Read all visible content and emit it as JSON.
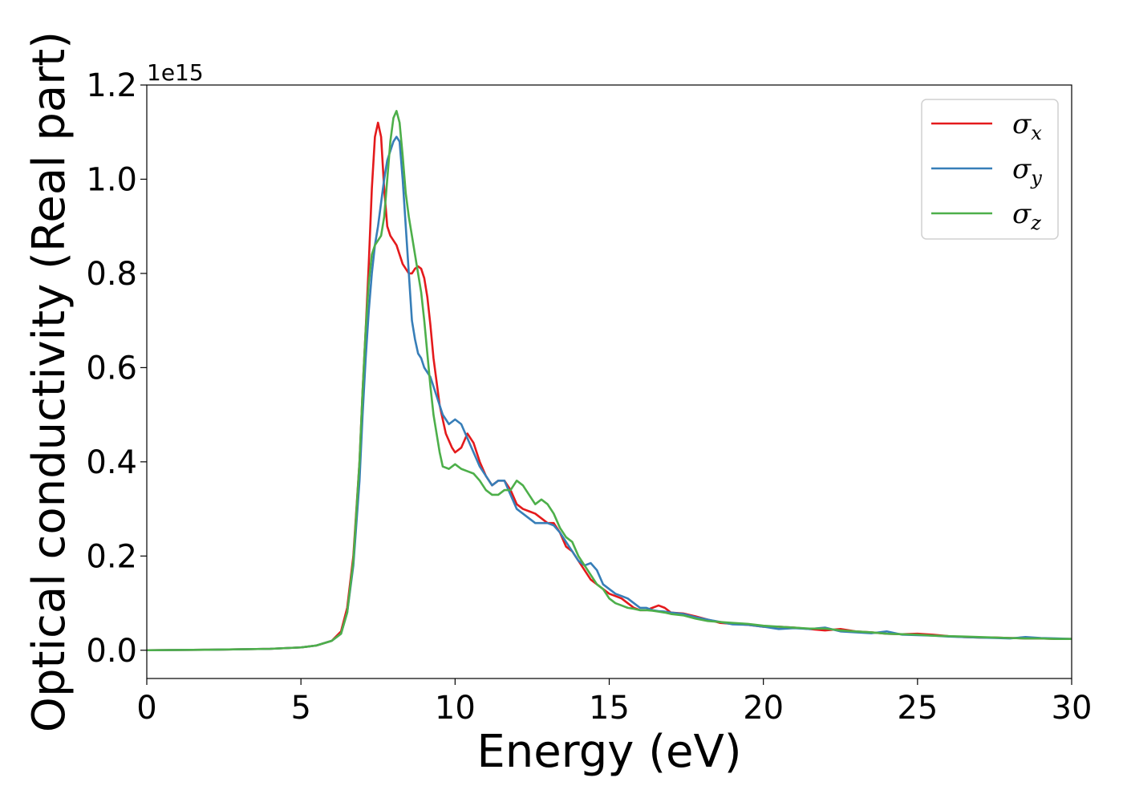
{
  "chart_data": {
    "type": "line",
    "title": "",
    "xlabel": "Energy (eV)",
    "ylabel": "Optical conductivity (Real part)",
    "y_offset_text": "1e15",
    "xlim": [
      0,
      30
    ],
    "ylim": [
      -0.06,
      1.2
    ],
    "xticks": [
      0,
      5,
      10,
      15,
      20,
      25,
      30
    ],
    "xtick_labels": [
      "0",
      "5",
      "10",
      "15",
      "20",
      "25",
      "30"
    ],
    "yticks": [
      0.0,
      0.2,
      0.4,
      0.6,
      0.8,
      1.0,
      1.2
    ],
    "ytick_labels": [
      "0.0",
      "0.2",
      "0.4",
      "0.6",
      "0.8",
      "1.0",
      "1.2"
    ],
    "grid": false,
    "legend_position": "top-right",
    "series": [
      {
        "name": "σx",
        "symbol": "σ",
        "subscript": "x",
        "color": "#e41a1c",
        "x": [
          0,
          2,
          4,
          5,
          5.5,
          6,
          6.3,
          6.5,
          6.7,
          6.9,
          7.0,
          7.1,
          7.2,
          7.3,
          7.4,
          7.5,
          7.6,
          7.7,
          7.8,
          7.9,
          8.0,
          8.1,
          8.2,
          8.3,
          8.5,
          8.6,
          8.7,
          8.8,
          8.9,
          9.0,
          9.1,
          9.2,
          9.3,
          9.5,
          9.7,
          9.9,
          10.0,
          10.2,
          10.4,
          10.6,
          10.8,
          11.0,
          11.2,
          11.4,
          11.6,
          11.8,
          12.0,
          12.2,
          12.4,
          12.6,
          12.8,
          13.0,
          13.2,
          13.4,
          13.6,
          13.8,
          14.0,
          14.2,
          14.4,
          14.6,
          14.8,
          15.0,
          15.2,
          15.4,
          15.6,
          15.8,
          16.0,
          16.2,
          16.4,
          16.6,
          16.8,
          17.0,
          17.4,
          17.8,
          18.2,
          18.6,
          19.0,
          19.5,
          20.0,
          20.5,
          21.0,
          21.5,
          22.0,
          22.5,
          23.0,
          23.5,
          24.0,
          24.5,
          25.0,
          25.5,
          26.0,
          26.5,
          27.0,
          27.5,
          28.0,
          28.5,
          29.0,
          29.5,
          30.0
        ],
        "y": [
          0.0,
          0.001,
          0.003,
          0.006,
          0.01,
          0.02,
          0.04,
          0.09,
          0.2,
          0.4,
          0.55,
          0.68,
          0.82,
          0.98,
          1.09,
          1.12,
          1.09,
          0.98,
          0.9,
          0.88,
          0.87,
          0.86,
          0.84,
          0.82,
          0.8,
          0.8,
          0.81,
          0.815,
          0.81,
          0.79,
          0.75,
          0.69,
          0.62,
          0.52,
          0.46,
          0.43,
          0.42,
          0.43,
          0.46,
          0.44,
          0.4,
          0.37,
          0.35,
          0.36,
          0.36,
          0.34,
          0.31,
          0.3,
          0.295,
          0.29,
          0.28,
          0.27,
          0.27,
          0.25,
          0.22,
          0.21,
          0.19,
          0.17,
          0.15,
          0.14,
          0.13,
          0.12,
          0.115,
          0.11,
          0.1,
          0.09,
          0.085,
          0.085,
          0.09,
          0.095,
          0.09,
          0.08,
          0.078,
          0.072,
          0.065,
          0.058,
          0.056,
          0.054,
          0.05,
          0.05,
          0.048,
          0.045,
          0.042,
          0.045,
          0.04,
          0.038,
          0.035,
          0.034,
          0.035,
          0.033,
          0.03,
          0.028,
          0.027,
          0.027,
          0.026,
          0.025,
          0.025,
          0.024,
          0.024
        ]
      },
      {
        "name": "σy",
        "symbol": "σ",
        "subscript": "y",
        "color": "#377eb8",
        "x": [
          0,
          2,
          4,
          5,
          5.5,
          6,
          6.3,
          6.5,
          6.7,
          6.9,
          7.0,
          7.1,
          7.2,
          7.3,
          7.4,
          7.5,
          7.6,
          7.7,
          7.8,
          7.9,
          8.0,
          8.1,
          8.2,
          8.3,
          8.4,
          8.5,
          8.6,
          8.7,
          8.8,
          8.9,
          9.0,
          9.2,
          9.4,
          9.6,
          9.8,
          10.0,
          10.2,
          10.4,
          10.6,
          10.8,
          11.0,
          11.2,
          11.4,
          11.6,
          11.8,
          12.0,
          12.2,
          12.4,
          12.6,
          12.8,
          13.0,
          13.2,
          13.4,
          13.6,
          13.8,
          14.0,
          14.2,
          14.4,
          14.6,
          14.8,
          15.0,
          15.2,
          15.4,
          15.6,
          15.8,
          16.0,
          16.2,
          16.4,
          16.6,
          16.8,
          17.0,
          17.4,
          17.8,
          18.2,
          18.6,
          19.0,
          19.5,
          20.0,
          20.5,
          21.0,
          21.5,
          22.0,
          22.5,
          23.0,
          23.5,
          24.0,
          24.5,
          25.0,
          25.5,
          26.0,
          26.5,
          27.0,
          27.5,
          28.0,
          28.5,
          29.0,
          29.5,
          30.0
        ],
        "y": [
          0.0,
          0.001,
          0.003,
          0.006,
          0.01,
          0.02,
          0.035,
          0.08,
          0.18,
          0.36,
          0.5,
          0.62,
          0.72,
          0.8,
          0.86,
          0.9,
          0.95,
          1.0,
          1.04,
          1.06,
          1.08,
          1.09,
          1.08,
          1.0,
          0.9,
          0.8,
          0.7,
          0.66,
          0.63,
          0.62,
          0.6,
          0.58,
          0.54,
          0.5,
          0.48,
          0.49,
          0.48,
          0.45,
          0.42,
          0.39,
          0.37,
          0.35,
          0.36,
          0.36,
          0.33,
          0.3,
          0.29,
          0.28,
          0.27,
          0.27,
          0.27,
          0.265,
          0.25,
          0.23,
          0.21,
          0.19,
          0.18,
          0.185,
          0.17,
          0.14,
          0.13,
          0.12,
          0.115,
          0.11,
          0.1,
          0.09,
          0.09,
          0.085,
          0.083,
          0.082,
          0.08,
          0.077,
          0.07,
          0.065,
          0.06,
          0.055,
          0.054,
          0.05,
          0.045,
          0.047,
          0.045,
          0.048,
          0.04,
          0.038,
          0.036,
          0.04,
          0.033,
          0.032,
          0.031,
          0.029,
          0.028,
          0.027,
          0.026,
          0.025,
          0.028,
          0.026,
          0.025,
          0.024
        ]
      },
      {
        "name": "σz",
        "symbol": "σ",
        "subscript": "z",
        "color": "#4daf4a",
        "x": [
          0,
          2,
          4,
          5,
          5.5,
          6,
          6.3,
          6.5,
          6.7,
          6.9,
          7.0,
          7.1,
          7.2,
          7.3,
          7.4,
          7.5,
          7.6,
          7.7,
          7.8,
          7.9,
          8.0,
          8.1,
          8.2,
          8.3,
          8.4,
          8.5,
          8.6,
          8.7,
          8.8,
          8.9,
          9.0,
          9.1,
          9.2,
          9.3,
          9.4,
          9.5,
          9.6,
          9.8,
          10.0,
          10.2,
          10.4,
          10.6,
          10.8,
          11.0,
          11.2,
          11.4,
          11.6,
          11.8,
          12.0,
          12.2,
          12.4,
          12.6,
          12.8,
          13.0,
          13.2,
          13.4,
          13.6,
          13.8,
          14.0,
          14.2,
          14.4,
          14.6,
          14.8,
          15.0,
          15.2,
          15.4,
          15.6,
          15.8,
          16.0,
          16.2,
          16.4,
          16.6,
          16.8,
          17.0,
          17.4,
          17.8,
          18.2,
          18.6,
          19.0,
          19.5,
          20.0,
          20.5,
          21.0,
          21.5,
          22.0,
          22.5,
          23.0,
          23.5,
          24.0,
          24.5,
          25.0,
          25.5,
          26.0,
          26.5,
          27.0,
          27.5,
          28.0,
          28.5,
          29.0,
          29.5,
          30.0
        ],
        "y": [
          0.0,
          0.001,
          0.003,
          0.006,
          0.01,
          0.02,
          0.035,
          0.08,
          0.19,
          0.4,
          0.55,
          0.68,
          0.78,
          0.84,
          0.86,
          0.87,
          0.88,
          0.92,
          1.0,
          1.08,
          1.13,
          1.145,
          1.12,
          1.05,
          0.97,
          0.92,
          0.88,
          0.84,
          0.8,
          0.76,
          0.7,
          0.63,
          0.56,
          0.5,
          0.46,
          0.42,
          0.39,
          0.385,
          0.395,
          0.385,
          0.38,
          0.375,
          0.36,
          0.34,
          0.33,
          0.33,
          0.34,
          0.34,
          0.36,
          0.35,
          0.33,
          0.31,
          0.32,
          0.31,
          0.29,
          0.26,
          0.24,
          0.23,
          0.2,
          0.18,
          0.16,
          0.14,
          0.13,
          0.11,
          0.1,
          0.095,
          0.09,
          0.088,
          0.085,
          0.085,
          0.084,
          0.082,
          0.08,
          0.077,
          0.074,
          0.067,
          0.062,
          0.06,
          0.058,
          0.056,
          0.052,
          0.05,
          0.048,
          0.046,
          0.046,
          0.042,
          0.04,
          0.038,
          0.035,
          0.034,
          0.033,
          0.031,
          0.03,
          0.029,
          0.028,
          0.027,
          0.026,
          0.025,
          0.025,
          0.024,
          0.024
        ]
      }
    ]
  }
}
